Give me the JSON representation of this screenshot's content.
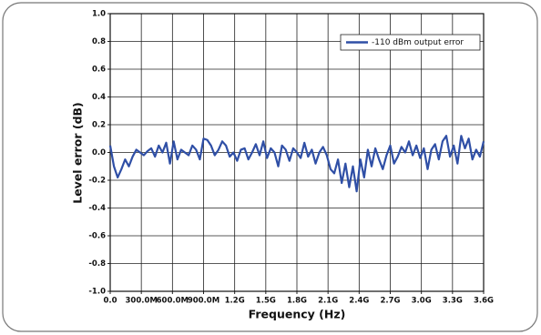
{
  "chart_data": {
    "type": "line",
    "xlabel": "Frequency (Hz)",
    "ylabel": "Level error (dB)",
    "x": [
      0,
      36000000,
      72000000,
      108000000,
      144000000,
      180000000,
      216000000,
      252000000,
      288000000,
      324000000,
      360000000,
      396000000,
      432000000,
      468000000,
      504000000,
      540000000,
      576000000,
      612000000,
      648000000,
      684000000,
      720000000,
      756000000,
      792000000,
      828000000,
      864000000,
      900000000,
      936000000,
      972000000,
      1008000000,
      1044000000,
      1080000000,
      1116000000,
      1152000000,
      1188000000,
      1224000000,
      1260000000,
      1296000000,
      1332000000,
      1368000000,
      1404000000,
      1440000000,
      1476000000,
      1512000000,
      1548000000,
      1584000000,
      1620000000,
      1656000000,
      1692000000,
      1728000000,
      1764000000,
      1800000000,
      1836000000,
      1872000000,
      1908000000,
      1944000000,
      1980000000,
      2016000000,
      2052000000,
      2088000000,
      2124000000,
      2160000000,
      2196000000,
      2232000000,
      2268000000,
      2304000000,
      2340000000,
      2376000000,
      2412000000,
      2448000000,
      2484000000,
      2520000000,
      2556000000,
      2592000000,
      2628000000,
      2664000000,
      2700000000,
      2736000000,
      2772000000,
      2808000000,
      2844000000,
      2880000000,
      2916000000,
      2952000000,
      2988000000,
      3024000000,
      3060000000,
      3096000000,
      3132000000,
      3168000000,
      3204000000,
      3240000000,
      3276000000,
      3312000000,
      3348000000,
      3384000000,
      3420000000,
      3456000000,
      3492000000,
      3528000000,
      3564000000,
      3600000000
    ],
    "series": [
      {
        "name": "-110 dBm output error",
        "color": "#2f4fa6",
        "values": [
          0.05,
          -0.1,
          -0.18,
          -0.12,
          -0.05,
          -0.1,
          -0.03,
          0.02,
          0.0,
          -0.02,
          0.01,
          0.03,
          -0.03,
          0.05,
          0.0,
          0.07,
          -0.08,
          0.08,
          -0.05,
          0.02,
          0.0,
          -0.02,
          0.05,
          0.02,
          -0.05,
          0.1,
          0.09,
          0.05,
          -0.02,
          0.02,
          0.08,
          0.05,
          -0.03,
          0.0,
          -0.06,
          0.02,
          0.03,
          -0.05,
          0.0,
          0.06,
          -0.02,
          0.08,
          -0.04,
          0.03,
          0.0,
          -0.1,
          0.05,
          0.02,
          -0.06,
          0.03,
          0.0,
          -0.04,
          0.07,
          -0.03,
          0.02,
          -0.08,
          0.0,
          0.04,
          -0.02,
          -0.12,
          -0.15,
          -0.05,
          -0.22,
          -0.08,
          -0.25,
          -0.1,
          -0.28,
          -0.05,
          -0.18,
          0.02,
          -0.1,
          0.03,
          -0.05,
          -0.12,
          -0.02,
          0.05,
          -0.08,
          -0.03,
          0.04,
          0.0,
          0.08,
          -0.02,
          0.05,
          -0.04,
          0.03,
          -0.12,
          0.02,
          0.06,
          -0.05,
          0.08,
          0.12,
          -0.03,
          0.05,
          -0.08,
          0.12,
          0.03,
          0.1,
          -0.05,
          0.02,
          -0.03,
          0.08
        ]
      }
    ],
    "xlim": [
      0,
      3600000000
    ],
    "xticks": [
      {
        "value": 0,
        "label": "0.0"
      },
      {
        "value": 300000000,
        "label": "300.0M"
      },
      {
        "value": 600000000,
        "label": "600.0M"
      },
      {
        "value": 900000000,
        "label": "900.0M"
      },
      {
        "value": 1200000000,
        "label": "1.2G"
      },
      {
        "value": 1500000000,
        "label": "1.5G"
      },
      {
        "value": 1800000000,
        "label": "1.8G"
      },
      {
        "value": 2100000000,
        "label": "2.1G"
      },
      {
        "value": 2400000000,
        "label": "2.4G"
      },
      {
        "value": 2700000000,
        "label": "2.7G"
      },
      {
        "value": 3000000000,
        "label": "3.0G"
      },
      {
        "value": 3300000000,
        "label": "3.3G"
      },
      {
        "value": 3600000000,
        "label": "3.6G"
      }
    ],
    "ylim": [
      -1,
      1
    ],
    "yticks": [
      {
        "value": -1,
        "label": "-1.0"
      },
      -0.8,
      -0.6,
      -0.4,
      -0.2,
      {
        "value": 0,
        "label": "0.0"
      },
      0.2,
      0.4,
      0.6,
      0.8,
      {
        "value": 1,
        "label": "1.0"
      }
    ],
    "grid": true,
    "legend": "upper right"
  }
}
